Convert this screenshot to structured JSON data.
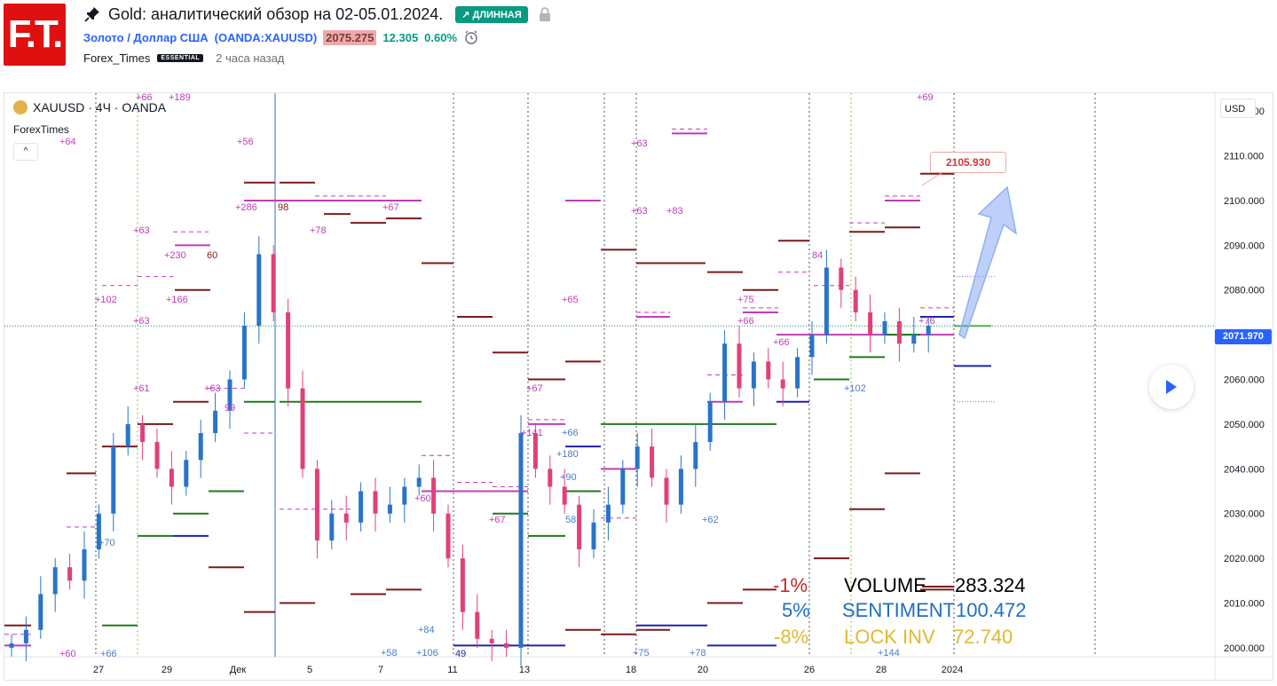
{
  "header": {
    "logo_text": "F.T.",
    "title": "Gold: аналитический обзор на 02-05.01.2024.",
    "badge": "↗ ДЛИННАЯ",
    "symbol_name": "Золото / Доллар США",
    "symbol_code": "(OANDA:XAUUSD)",
    "price": "2075.275",
    "change": "12.305",
    "change_pct": "0.60%",
    "author": "Forex_Times",
    "author_badge": "ESSENTIAL",
    "time_ago": "2 часа назад"
  },
  "chart": {
    "legend_title": "XAUUSD · 4Ч · OANDA",
    "legend_sub": "ForexTimes",
    "collapse_icon": "^",
    "currency_button": "USD",
    "current_price_tag": "2071.970",
    "target_label": "2105.930",
    "x_ticks": [
      "27",
      "29",
      "Дек",
      "5",
      "7",
      "11",
      "13",
      "18",
      "20",
      "26",
      "28",
      "2024"
    ],
    "y_ticks": [
      "2000.000",
      "2010.000",
      "2020.000",
      "2030.000",
      "2040.000",
      "2050.000",
      "2060.000",
      "2070.000",
      "2080.000",
      "2090.000",
      "2100.000",
      "2110.000",
      "2120.000"
    ],
    "stats": [
      {
        "pct": "-1%",
        "name": "VOLUME",
        "value": "283.324",
        "color": "#c62828"
      },
      {
        "pct": "5%",
        "name": "SENTIMENT",
        "value": "100.472",
        "color": "#1e6fc4"
      },
      {
        "pct": "-8%",
        "name": "LOCK INV",
        "value": "72.740",
        "color": "#e0b830"
      }
    ],
    "annotations": [
      "+66",
      "+189",
      "+64",
      "+56",
      "+286",
      "98",
      "+67",
      "+78",
      "+63",
      "+230",
      "60",
      "+102",
      "+166",
      "+61",
      "+63",
      "+70",
      "+60",
      "+66",
      "+65",
      "+67",
      "+141",
      "+66",
      "+180",
      "+90",
      "58",
      "+63",
      "+83",
      "+75",
      "+66",
      "+62",
      "+78",
      "+69",
      "84",
      "+102",
      "+76",
      "+84",
      "+58",
      "+106",
      "+144",
      "+60"
    ],
    "colors": {
      "up": "#2874c9",
      "down": "#e0407a",
      "level_dark": "#7a1a1a",
      "level_pink": "#c03cb8",
      "level_green": "#1f7a1f",
      "level_blue": "#2020b0"
    }
  },
  "chart_data": {
    "type": "candlestick",
    "title": "XAUUSD · 4Ч · OANDA",
    "ylim": [
      1998,
      2124
    ],
    "x_labels": [
      "27",
      "29",
      "Дек",
      "5",
      "7",
      "11",
      "13",
      "18",
      "20",
      "26",
      "28",
      "2024"
    ],
    "close_series": [
      2001,
      2004,
      2012,
      2018,
      2015,
      2022,
      2030,
      2045,
      2050,
      2046,
      2040,
      2036,
      2042,
      2048,
      2053,
      2060,
      2072,
      2088,
      2075,
      2058,
      2040,
      2024,
      2030,
      2028,
      2035,
      2030,
      2032,
      2036,
      2038,
      2030,
      2020,
      2008,
      2002,
      2001,
      2000,
      2048,
      2040,
      2036,
      2032,
      2022,
      2028,
      2032,
      2040,
      2045,
      2038,
      2032,
      2040,
      2046,
      2055,
      2068,
      2058,
      2064,
      2060,
      2058,
      2065,
      2070,
      2085,
      2080,
      2075,
      2070,
      2073,
      2068,
      2070,
      2072
    ],
    "target": 2105.93,
    "current": 2071.97
  }
}
